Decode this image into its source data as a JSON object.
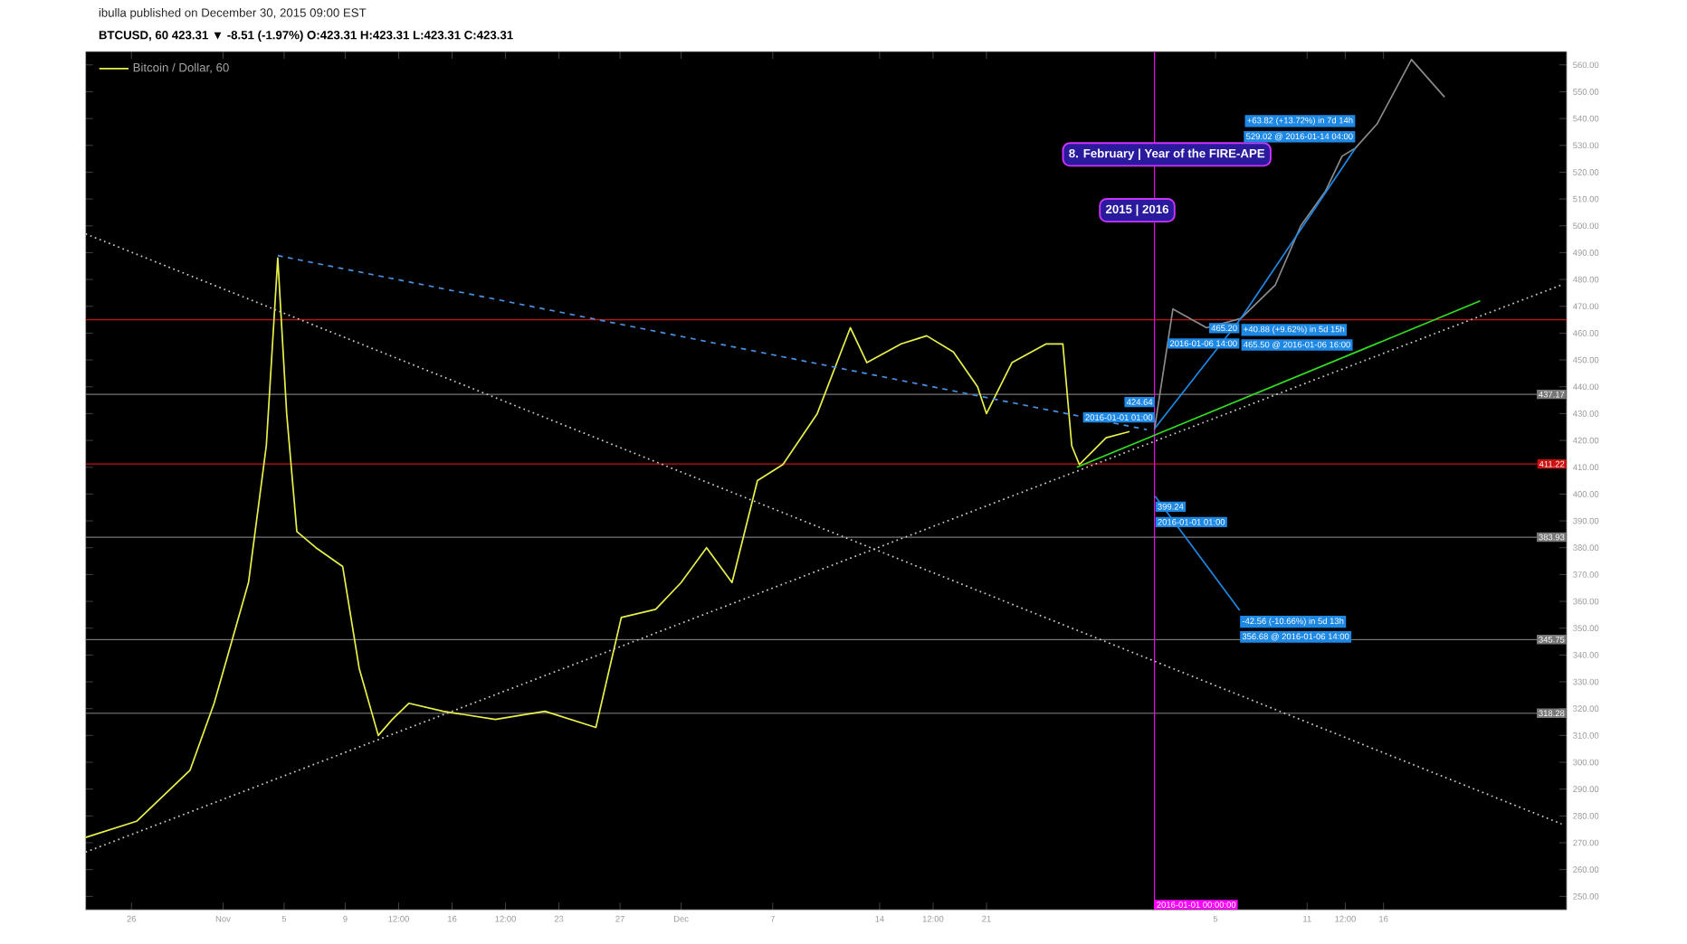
{
  "chart_data": {
    "type": "line",
    "subtitle": "ibulla published on December 30, 2015 09:00 EST",
    "title": "BTCUSD, 60 423.31 ▼ -8.51 (-1.97%) O:423.31 H:423.31 L:423.31 C:423.31",
    "xlim": [
      "2015-10-23",
      "2016-01-28"
    ],
    "ylim": [
      245,
      565
    ],
    "xticks": [
      {
        "value": "2015-10-26",
        "label": "26"
      },
      {
        "value": "2015-11-01",
        "label": "Nov"
      },
      {
        "value": "2015-11-05",
        "label": "5"
      },
      {
        "value": "2015-11-09",
        "label": "9"
      },
      {
        "value": "2015-11-12T12:00",
        "label": "12:00"
      },
      {
        "value": "2015-11-16",
        "label": "16"
      },
      {
        "value": "2015-11-19T12:00",
        "label": "12:00"
      },
      {
        "value": "2015-11-23",
        "label": "23"
      },
      {
        "value": "2015-11-27",
        "label": "27"
      },
      {
        "value": "2015-12-01",
        "label": "Dec"
      },
      {
        "value": "2015-12-07",
        "label": "7"
      },
      {
        "value": "2015-12-14",
        "label": "14"
      },
      {
        "value": "2015-12-17T12:00",
        "label": "12:00"
      },
      {
        "value": "2015-12-21",
        "label": "21"
      },
      {
        "value": "2016-01-05",
        "label": "5"
      },
      {
        "value": "2016-01-11",
        "label": "11"
      },
      {
        "value": "2016-01-13T12:00",
        "label": "12:00"
      },
      {
        "value": "2016-01-16",
        "label": "16"
      }
    ],
    "yticks": [
      {
        "value": 250,
        "label": "250.00"
      },
      {
        "value": 260,
        "label": "260.00"
      },
      {
        "value": 270,
        "label": "270.00"
      },
      {
        "value": 280,
        "label": "280.00"
      },
      {
        "value": 290,
        "label": "290.00"
      },
      {
        "value": 300,
        "label": "300.00"
      },
      {
        "value": 310,
        "label": "310.00"
      },
      {
        "value": 320,
        "label": "320.00"
      },
      {
        "value": 330,
        "label": "330.00"
      },
      {
        "value": 340,
        "label": "340.00"
      },
      {
        "value": 350,
        "label": "350.00"
      },
      {
        "value": 360,
        "label": "360.00"
      },
      {
        "value": 370,
        "label": "370.00"
      },
      {
        "value": 380,
        "label": "380.00"
      },
      {
        "value": 390,
        "label": "390.00"
      },
      {
        "value": 400,
        "label": "400.00"
      },
      {
        "value": 410,
        "label": "410.00"
      },
      {
        "value": 420,
        "label": "420.00"
      },
      {
        "value": 430,
        "label": "430.00"
      },
      {
        "value": 440,
        "label": "440.00"
      },
      {
        "value": 450,
        "label": "450.00"
      },
      {
        "value": 460,
        "label": "460.00"
      },
      {
        "value": 470,
        "label": "470.00"
      },
      {
        "value": 480,
        "label": "480.00"
      },
      {
        "value": 490,
        "label": "490.00"
      },
      {
        "value": 500,
        "label": "500.00"
      },
      {
        "value": 510,
        "label": "510.00"
      },
      {
        "value": 520,
        "label": "520.00"
      },
      {
        "value": 530,
        "label": "530.00"
      },
      {
        "value": 540,
        "label": "540.00"
      },
      {
        "value": 550,
        "label": "550.00"
      },
      {
        "value": 560,
        "label": "560.00"
      }
    ],
    "legend": "top left",
    "series": [
      {
        "name": "Bitcoin / Dollar, 60",
        "color": "#e8f04a",
        "x": [
          "2015-10-23",
          "2015-10-26T08:00",
          "2015-10-29T20:00",
          "2015-10-31T10:00",
          "2015-11-02T16:00",
          "2015-11-03T20:00",
          "2015-11-04T14:00",
          "2015-11-05T04:00",
          "2015-11-05T20:00",
          "2015-11-07T02:00",
          "2015-11-08T20:00",
          "2015-11-09T22:00",
          "2015-11-11T04:00",
          "2015-11-12T02:00",
          "2015-11-13T04:00",
          "2015-11-15T10:00",
          "2015-11-18T20:00",
          "2015-11-22T02:00",
          "2015-11-25T10:00",
          "2015-11-27T02:00",
          "2015-11-29T08:00",
          "2015-12-01",
          "2015-12-02T16:00",
          "2015-12-04T08:00",
          "2015-12-06",
          "2015-12-07T16:00",
          "2015-12-09T22:00",
          "2015-12-12T02:00",
          "2015-12-13T04:00",
          "2015-12-15T10:00",
          "2015-12-17T02:00",
          "2015-12-18T20:00",
          "2015-12-20T10:00",
          "2015-12-21",
          "2015-12-22T16:00",
          "2015-12-24T22:00",
          "2015-12-26",
          "2015-12-26T14:00",
          "2015-12-27T02:00",
          "2015-12-28T20:00",
          "2015-12-30T09:00"
        ],
        "values": [
          272,
          278,
          297,
          322,
          367,
          418,
          488,
          430,
          386,
          380,
          373,
          335,
          310,
          316,
          322,
          319,
          316,
          319,
          313,
          354,
          357,
          367,
          380,
          367,
          405,
          411,
          430,
          462,
          449,
          456,
          459,
          453,
          440,
          430,
          449,
          456,
          456,
          418,
          411,
          421,
          423.31
        ]
      },
      {
        "color": "#8a8a8a",
        "x": [
          "2016-01-01",
          "2016-01-02T05:00",
          "2016-01-04T10:00",
          "2016-01-06T16:00",
          "2016-01-08T22:00",
          "2016-01-10T14:00",
          "2016-01-12T05:00",
          "2016-01-13T07:00",
          "2016-01-14T04:00",
          "2016-01-15T14:00",
          "2016-01-17T20:00",
          "2016-01-20"
        ],
        "values": [
          424,
          469,
          462,
          465.5,
          478,
          500,
          513,
          526,
          529.02,
          538,
          562,
          548
        ]
      },
      {
        "color": "#4a90e2",
        "line_style": "dashed",
        "x": [
          "2015-11-04T14:00",
          "2015-12-31T12:00"
        ],
        "values": [
          488.9,
          424
        ]
      },
      {
        "color": "#1e88e5",
        "x": [
          "2016-01-01T01:00",
          "2016-01-06T16:00",
          "2016-01-14T04:00"
        ],
        "values": [
          424.64,
          465.5,
          529.02
        ]
      },
      {
        "color": "#1e88e5",
        "x": [
          "2016-01-01T01:00",
          "2016-01-06T14:00"
        ],
        "values": [
          399.24,
          356.68
        ]
      },
      {
        "color": "#33dd22",
        "x": [
          "2015-12-26T22:00",
          "2016-01-22T08:00"
        ],
        "values": [
          410,
          472
        ]
      },
      {
        "color": "#cccccc",
        "line_style": "dotted",
        "x": [
          "2015-10-23",
          "2016-01-27T16:00"
        ],
        "values": [
          266.5,
          478
        ]
      },
      {
        "color": "#cccccc",
        "line_style": "dotted",
        "x": [
          "2015-10-23",
          "2016-01-27T16:00"
        ],
        "values": [
          497,
          277
        ]
      }
    ],
    "ref_lines": [
      {
        "axis": "y",
        "value": 465,
        "color": "#cc1111"
      },
      {
        "axis": "y",
        "value": 437.17,
        "label": "437.17",
        "color": "#777777"
      },
      {
        "axis": "y",
        "value": 411.22,
        "label": "411.22",
        "color": "#cc1111"
      },
      {
        "axis": "y",
        "value": 383.93,
        "label": "383.93",
        "color": "#777777"
      },
      {
        "axis": "y",
        "value": 345.75,
        "label": "345.75",
        "color": "#777777"
      },
      {
        "axis": "y",
        "value": 318.28,
        "label": "318.28",
        "color": "#777777"
      },
      {
        "axis": "x",
        "value": "2016-01-01",
        "label": "2016-01-01 00:00:00",
        "color": "#ff00ff"
      }
    ],
    "annotations": [
      "8. February | Year of the FIRE-APE",
      "2015 | 2016",
      {
        "text": "+40.88 (+9.62%) in 5d 15h",
        "x": "2016-01-06T16:00",
        "y": 465.5
      },
      {
        "text": "465.50 @ 2016-01-06 16:00",
        "x": "2016-01-06T16:00",
        "y": 465.5
      },
      {
        "text": "465.20",
        "x": "2016-01-06T14:00",
        "y": 465.2
      },
      {
        "text": "2016-01-06 14:00",
        "x": "2016-01-06T14:00",
        "y": 465.2
      },
      {
        "text": "+63.82 (+13.72%) in 7d 14h",
        "x": "2016-01-14T04:00",
        "y": 529.02
      },
      {
        "text": "529.02 @ 2016-01-14 04:00",
        "x": "2016-01-14T04:00",
        "y": 529.02
      },
      {
        "text": "-42.56 (-10.66%) in 5d 13h",
        "x": "2016-01-06T14:00",
        "y": 356.68
      },
      {
        "text": "356.68 @ 2016-01-06 14:00",
        "x": "2016-01-06T14:00",
        "y": 356.68
      },
      {
        "text": "424.64",
        "x": "2016-01-01T01:00",
        "y": 424.64
      },
      {
        "text": "2016-01-01 01:00",
        "x": "2016-01-01T01:00",
        "y": 424.64
      },
      {
        "text": "399.24",
        "x": "2016-01-01T01:00",
        "y": 399.24
      },
      {
        "text": "2016-01-01 01:00",
        "x": "2016-01-01T01:00",
        "y": 399.24
      }
    ]
  }
}
